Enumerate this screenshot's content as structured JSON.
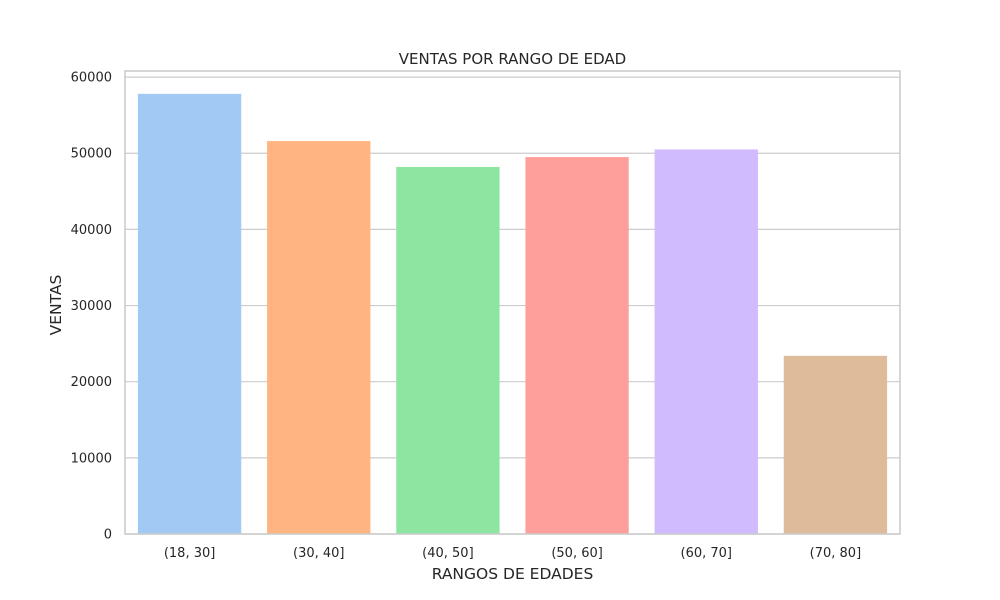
{
  "chart_data": {
    "type": "bar",
    "title": "VENTAS POR RANGO DE EDAD",
    "xlabel": "RANGOS DE EDADES",
    "ylabel": "VENTAS",
    "categories": [
      "(18, 30]",
      "(30, 40]",
      "(40, 50]",
      "(50, 60]",
      "(60, 70]",
      "(70, 80]"
    ],
    "values": [
      57800,
      51600,
      48200,
      49500,
      50500,
      23400
    ],
    "colors": [
      "#a1c9f4",
      "#ffb482",
      "#8de5a1",
      "#ff9f9b",
      "#d0bbff",
      "#debb9b"
    ],
    "ylim": [
      0,
      60800
    ],
    "yticks": [
      0,
      10000,
      20000,
      30000,
      40000,
      50000,
      60000
    ],
    "ytick_labels": [
      "0",
      "10000",
      "20000",
      "30000",
      "40000",
      "50000",
      "60000"
    ],
    "grid": true,
    "grid_axis": "y",
    "legend": false
  }
}
